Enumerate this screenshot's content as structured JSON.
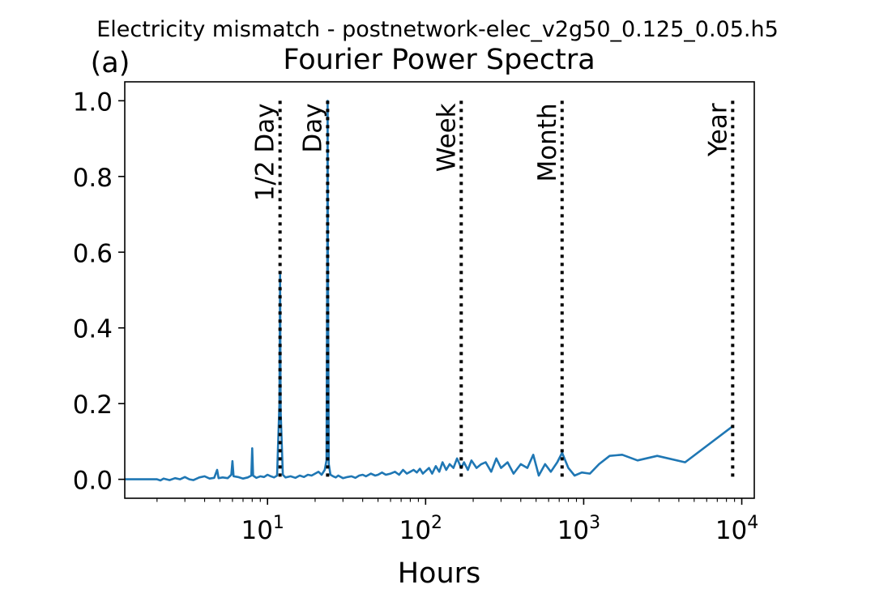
{
  "suptitle": "Electricity mismatch - postnetwork-elec_v2g50_0.125_0.05.h5",
  "panel_label": "(a)",
  "chart_data": {
    "type": "line",
    "title": "Fourier Power Spectra",
    "xlabel": "Hours",
    "ylabel": "",
    "xscale": "log",
    "xlim": [
      1.25,
      12000
    ],
    "ylim": [
      -0.05,
      1.05
    ],
    "grid": false,
    "yticks": [
      0.0,
      0.2,
      0.4,
      0.6,
      0.8,
      1.0
    ],
    "ytick_labels": [
      "0.0",
      "0.2",
      "0.4",
      "0.6",
      "0.8",
      "1.0"
    ],
    "xticks": [
      10,
      100,
      1000,
      10000
    ],
    "xtick_base": "10",
    "xtick_exponents": [
      "1",
      "2",
      "3",
      "4"
    ],
    "line_color": "#1f77b4",
    "series": [
      {
        "x": [
          1.25,
          1.5,
          1.8,
          2.0,
          2.1,
          2.2,
          2.4,
          2.6,
          2.8,
          3.0,
          3.2,
          3.4,
          3.7,
          4.0,
          4.3,
          4.6,
          4.8,
          4.9,
          5.2,
          5.6,
          5.9,
          6.0,
          6.1,
          6.5,
          7.0,
          7.5,
          7.9,
          8.0,
          8.1,
          8.5,
          9.0,
          9.5,
          10.0,
          10.5,
          11.0,
          11.5,
          11.9,
          12.0,
          12.1,
          12.5,
          13.0,
          14.0,
          15.0,
          16.0,
          17.0,
          18.0,
          19.0,
          20.0,
          21.0,
          22.0,
          23.0,
          23.6,
          23.9,
          24.0,
          24.1,
          24.4,
          25.0,
          26.0,
          27.0,
          28.0,
          30.0,
          32.0,
          34.0,
          36.0,
          38.0,
          40.0,
          42.0,
          45.0,
          48.0,
          50.0,
          53.0,
          56.0,
          60.0,
          64.0,
          68.0,
          72.0,
          76.0,
          80.0,
          84.0,
          88.0,
          92.0,
          96.0,
          100.0,
          105.0,
          110.0,
          116.0,
          122.0,
          128.0,
          135.0,
          142.0,
          150.0,
          158.0,
          168.0,
          175.0,
          185.0,
          195.0,
          210.0,
          225.0,
          240.0,
          260.0,
          280.0,
          300.0,
          330.0,
          360.0,
          400.0,
          440.0,
          480.0,
          520.0,
          570.0,
          620.0,
          680.0,
          730.0,
          800.0,
          876.0,
          973.0,
          1095.0,
          1251.0,
          1460.0,
          1752.0,
          2190.0,
          2920.0,
          4380.0,
          8760.0
        ],
        "y": [
          0.0,
          0.0,
          0.0,
          0.0,
          -0.003,
          0.002,
          -0.002,
          0.003,
          0.0,
          0.006,
          0.0,
          -0.002,
          0.005,
          0.008,
          0.002,
          0.004,
          0.025,
          0.003,
          0.005,
          0.003,
          0.012,
          0.048,
          0.008,
          0.006,
          0.002,
          0.005,
          0.01,
          0.082,
          0.01,
          0.004,
          0.008,
          0.006,
          0.012,
          0.008,
          0.005,
          0.01,
          0.2,
          0.54,
          0.18,
          0.012,
          0.005,
          0.008,
          0.004,
          0.01,
          0.006,
          0.012,
          0.01,
          0.015,
          0.02,
          0.012,
          0.025,
          0.05,
          0.6,
          1.0,
          0.6,
          0.04,
          0.012,
          0.008,
          0.005,
          0.01,
          0.003,
          0.006,
          0.008,
          0.004,
          0.01,
          0.012,
          0.008,
          0.015,
          0.01,
          0.012,
          0.018,
          0.012,
          0.015,
          0.02,
          0.012,
          0.025,
          0.015,
          0.02,
          0.025,
          0.018,
          0.028,
          0.015,
          0.022,
          0.03,
          0.015,
          0.035,
          0.02,
          0.045,
          0.025,
          0.04,
          0.03,
          0.055,
          0.03,
          0.045,
          0.025,
          0.05,
          0.03,
          0.04,
          0.045,
          0.02,
          0.055,
          0.03,
          0.045,
          0.015,
          0.04,
          0.03,
          0.065,
          0.01,
          0.04,
          0.02,
          0.045,
          0.07,
          0.03,
          0.01,
          0.018,
          0.015,
          0.04,
          0.062,
          0.065,
          0.05,
          0.062,
          0.045,
          0.14
        ]
      }
    ],
    "vlines": [
      {
        "x": 12,
        "label": "1/2 Day"
      },
      {
        "x": 24,
        "label": "Day"
      },
      {
        "x": 168,
        "label": "Week"
      },
      {
        "x": 730,
        "label": "Month"
      },
      {
        "x": 8760,
        "label": "Year"
      }
    ]
  }
}
